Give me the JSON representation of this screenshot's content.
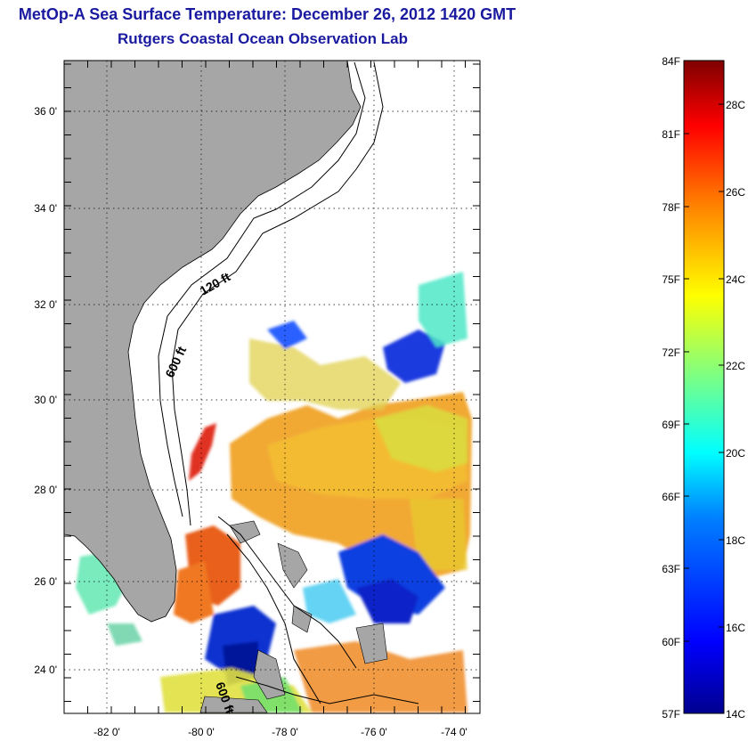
{
  "title": "MetOp-A Sea Surface Temperature:  December 26, 2012 1420 GMT",
  "subtitle": "Rutgers Coastal Ocean Observation Lab",
  "map": {
    "lat_labels": [
      "36 0'",
      "34 0'",
      "32 0'",
      "30 0'",
      "28 0'",
      "26 0'",
      "24 0'"
    ],
    "lon_labels": [
      "-82 0'",
      "-80 0'",
      "-78 0'",
      "-76 0'",
      "-74 0'"
    ],
    "contour_labels": [
      "120 ft",
      "600 ft",
      "600 ft"
    ],
    "land_color": "#a6a6a6",
    "no_data_color": "#ffffff"
  },
  "colorbar": {
    "f_labels": [
      "84F",
      "81F",
      "78F",
      "75F",
      "72F",
      "69F",
      "66F",
      "63F",
      "60F",
      "57F"
    ],
    "c_labels": [
      "28C",
      "26C",
      "24C",
      "22C",
      "20C",
      "18C",
      "16C",
      "14C"
    ],
    "colors": [
      "#7f0000",
      "#ff0000",
      "#ff8000",
      "#ffff00",
      "#80ff80",
      "#00ffff",
      "#0080ff",
      "#0000ff",
      "#00008f"
    ]
  }
}
